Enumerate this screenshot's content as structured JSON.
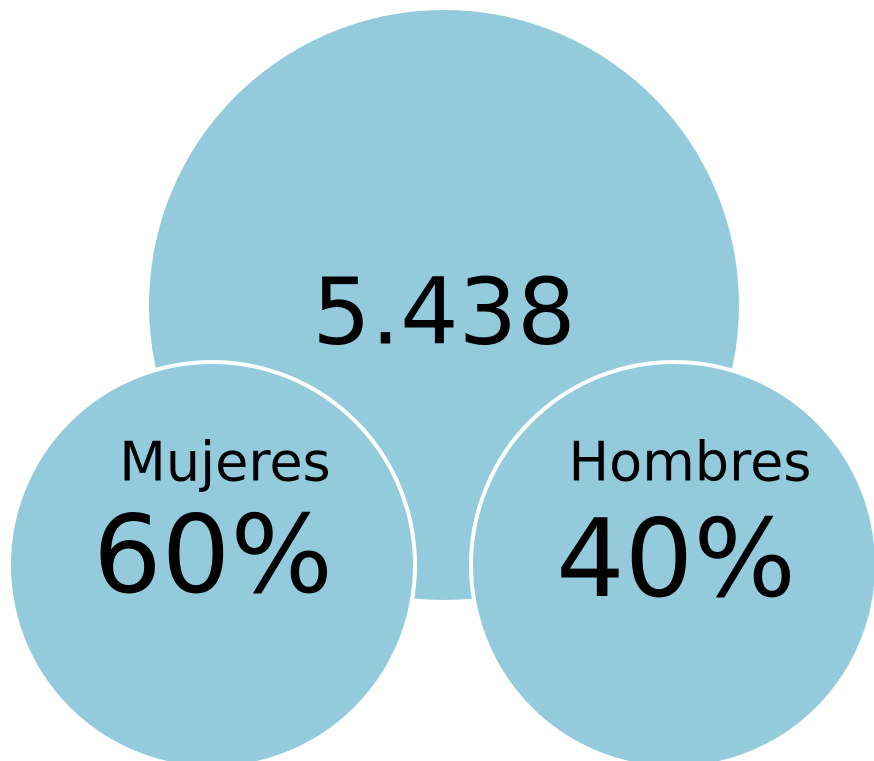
{
  "total": {
    "value": "5.438"
  },
  "nodes": [
    {
      "label": "Mujeres",
      "value": "60%"
    },
    {
      "label": "Hombres",
      "value": "40%"
    }
  ]
}
